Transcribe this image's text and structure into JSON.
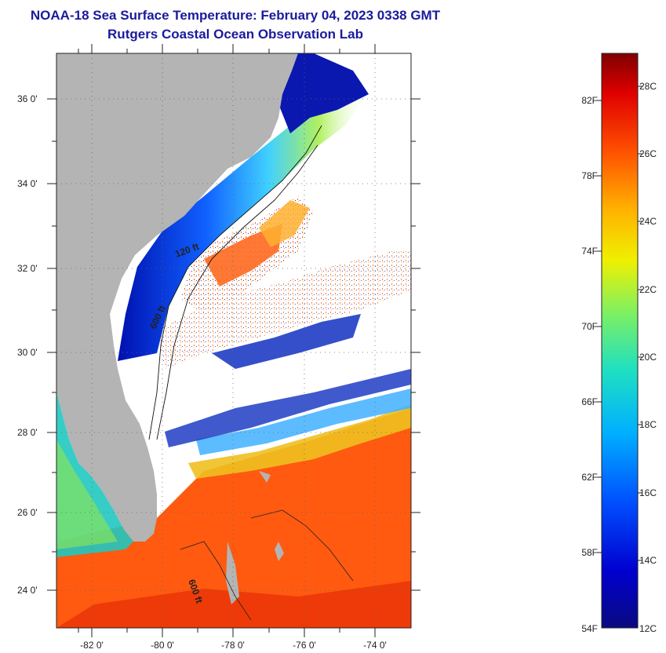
{
  "header": {
    "title": "NOAA-18 Sea Surface Temperature:  February 04, 2023 0338 GMT",
    "subtitle": "Rutgers Coastal Ocean Observation Lab"
  },
  "map": {
    "lon_range": [
      -83,
      -73
    ],
    "lat_range": [
      23,
      37
    ],
    "lon_ticks": [
      "-82 0'",
      "-80 0'",
      "-78 0'",
      "-76 0'",
      "-74 0'"
    ],
    "lat_ticks": [
      "36 0'",
      "34 0'",
      "32 0'",
      "30 0'",
      "28 0'",
      "26 0'",
      "24 0'"
    ],
    "isobath_labels": [
      "120 ft",
      "600 ft",
      "600 ft"
    ],
    "colors": {
      "land": "#b4b4b4",
      "cloud": "#ffffff",
      "cold": "#1020c0",
      "warm": "#ff5a10"
    }
  },
  "colorbar": {
    "f_labels": [
      "82F",
      "78F",
      "74F",
      "70F",
      "66F",
      "62F",
      "58F",
      "54F"
    ],
    "c_labels": [
      "28C",
      "26C",
      "24C",
      "22C",
      "20C",
      "18C",
      "16C",
      "14C",
      "12C"
    ],
    "colors": [
      "#0a0a80",
      "#0000d0",
      "#0050ff",
      "#00b0ff",
      "#20e0c0",
      "#80f060",
      "#f0f000",
      "#ffb000",
      "#ff5000",
      "#e00000",
      "#800000"
    ]
  }
}
